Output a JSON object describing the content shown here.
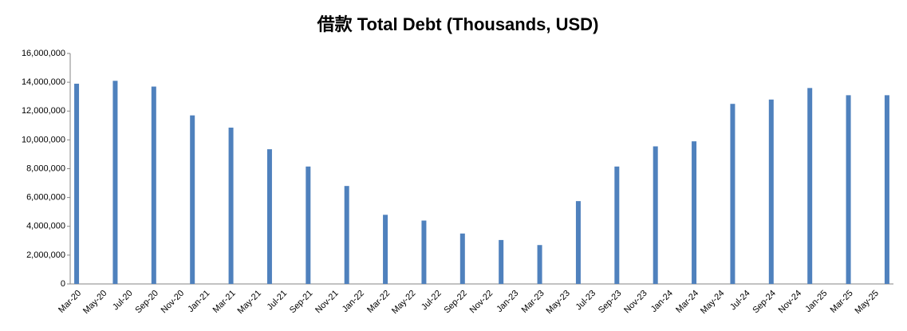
{
  "chart_data": {
    "type": "bar",
    "title": "借款 Total Debt (Thousands, USD)",
    "categories": [
      "Mar-20",
      null,
      "May-20",
      null,
      "Jul-20",
      null,
      "Sep-20",
      null,
      "Nov-20",
      null,
      "Jan-21",
      null,
      "Mar-21",
      null,
      "May-21",
      null,
      "Jul-21",
      null,
      "Sep-21",
      null,
      "Nov-21",
      null,
      "Jan-22",
      null,
      "Mar-22",
      null,
      "May-22",
      null,
      "Jul-22",
      null,
      "Sep-22",
      null,
      "Nov-22",
      null,
      "Jan-23",
      null,
      "Mar-23",
      null,
      "May-23",
      null,
      "Jul-23",
      null,
      "Sep-23",
      null,
      "Nov-23",
      null,
      "Jan-24",
      null,
      "Mar-24",
      null,
      "May-24",
      null,
      "Jul-24",
      null,
      "Sep-24",
      null,
      "Nov-24",
      null,
      "Jan-25",
      null,
      "Mar-25",
      null,
      "May-25",
      null
    ],
    "values": [
      13900000,
      null,
      null,
      14100000,
      null,
      null,
      13700000,
      null,
      null,
      11700000,
      null,
      null,
      10850000,
      null,
      null,
      9350000,
      null,
      null,
      8150000,
      null,
      null,
      6800000,
      null,
      null,
      4800000,
      null,
      null,
      4400000,
      null,
      null,
      3500000,
      null,
      null,
      3050000,
      null,
      null,
      2700000,
      null,
      null,
      5750000,
      null,
      null,
      8150000,
      null,
      null,
      9550000,
      null,
      null,
      9900000,
      null,
      null,
      12500000,
      null,
      null,
      12800000,
      null,
      null,
      13600000,
      null,
      null,
      13100000,
      null,
      null,
      13100000
    ],
    "color": "#4f81bd",
    "ylim": [
      0,
      16000000
    ],
    "yticks": [
      0,
      {
        "value": 2000000,
        "label": "2,000,000"
      },
      {
        "value": 4000000,
        "label": "4,000,000"
      },
      {
        "value": 6000000,
        "label": "6,000,000"
      },
      {
        "value": 8000000,
        "label": "8,000,000"
      },
      {
        "value": 10000000,
        "label": "10,000,000"
      },
      {
        "value": 12000000,
        "label": "12,000,000"
      },
      {
        "value": 14000000,
        "label": "14,000,000"
      },
      {
        "value": 16000000,
        "label": "16,000,000"
      }
    ],
    "grid": false
  }
}
